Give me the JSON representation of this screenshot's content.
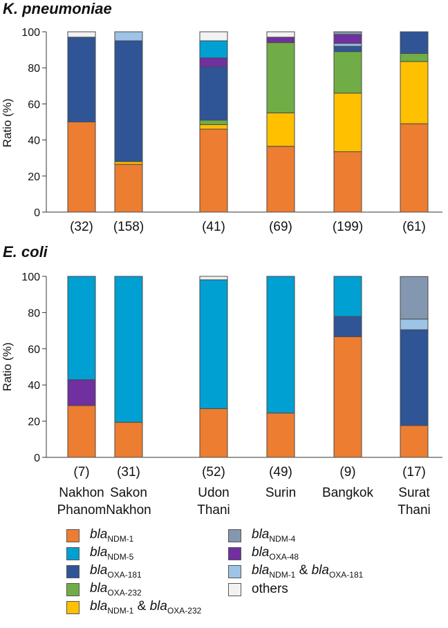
{
  "chart_data": [
    {
      "type": "bar",
      "stacked": true,
      "title": "K. pneumoniae",
      "ylabel": "Ratio (%)",
      "ylim": [
        0,
        100
      ],
      "yticks": [
        0,
        20,
        40,
        60,
        80,
        100
      ],
      "counts": [
        "(32)",
        "(158)",
        "(41)",
        "(69)",
        "(199)",
        "(61)"
      ],
      "series": [
        {
          "name": "NDM-1",
          "values": [
            50,
            26.5,
            46,
            36.5,
            33.5,
            49
          ]
        },
        {
          "name": "NDM-1 & OXA-232",
          "values": [
            0,
            1.5,
            2.5,
            18.5,
            32.5,
            34.5
          ]
        },
        {
          "name": "OXA-232",
          "values": [
            0,
            0,
            2.5,
            39,
            23,
            4.5
          ]
        },
        {
          "name": "OXA-181",
          "values": [
            47,
            67,
            29.5,
            0,
            3,
            12
          ]
        },
        {
          "name": "NDM-1 & OXA-181",
          "values": [
            0,
            5,
            0,
            0,
            1.5,
            0
          ]
        },
        {
          "name": "OXA-48",
          "values": [
            0,
            0,
            5,
            3,
            5,
            0
          ]
        },
        {
          "name": "NDM-5",
          "values": [
            0,
            0,
            9.5,
            0,
            0,
            0
          ]
        },
        {
          "name": "NDM-4",
          "values": [
            0,
            0,
            0,
            0,
            1.5,
            0
          ]
        },
        {
          "name": "others",
          "values": [
            3,
            0,
            5,
            3,
            0,
            0
          ]
        }
      ]
    },
    {
      "type": "bar",
      "stacked": true,
      "title": "E. coli",
      "ylabel": "Ratio (%)",
      "ylim": [
        0,
        100
      ],
      "yticks": [
        0,
        20,
        40,
        60,
        80,
        100
      ],
      "counts": [
        "(7)",
        "(31)",
        "(52)",
        "(49)",
        "(9)",
        "(17)"
      ],
      "categories": [
        [
          "Nakhon",
          "Phanom"
        ],
        [
          "Sakon",
          "Nakhon"
        ],
        [
          "Udon",
          "Thani"
        ],
        [
          "Surin",
          ""
        ],
        [
          "Bangkok",
          ""
        ],
        [
          "Surat",
          "Thani"
        ]
      ],
      "series": [
        {
          "name": "NDM-1",
          "values": [
            28.6,
            19.4,
            26.9,
            24.5,
            66.7,
            17.6
          ]
        },
        {
          "name": "NDM-1 & OXA-232",
          "values": [
            0,
            0,
            0,
            0,
            0,
            0
          ]
        },
        {
          "name": "OXA-232",
          "values": [
            0,
            0,
            0,
            0,
            0,
            0
          ]
        },
        {
          "name": "OXA-181",
          "values": [
            0,
            0,
            0,
            0,
            11.1,
            52.9
          ]
        },
        {
          "name": "NDM-1 & OXA-181",
          "values": [
            0,
            0,
            0,
            0,
            0,
            5.9
          ]
        },
        {
          "name": "OXA-48",
          "values": [
            14.3,
            0,
            0,
            0,
            0,
            0
          ]
        },
        {
          "name": "NDM-5",
          "values": [
            57.1,
            80.6,
            71.2,
            75.5,
            22.2,
            0
          ]
        },
        {
          "name": "NDM-4",
          "values": [
            0,
            0,
            0,
            0,
            0,
            23.5
          ]
        },
        {
          "name": "others",
          "values": [
            0,
            0,
            1.9,
            0,
            0,
            0
          ]
        }
      ]
    }
  ],
  "colors": {
    "NDM-1": "#ed7d31",
    "NDM-5": "#00a0d2",
    "OXA-181": "#2f5597",
    "OXA-232": "#70ad47",
    "NDM-1 & OXA-232": "#ffc000",
    "NDM-4": "#8497b0",
    "OXA-48": "#7030a0",
    "NDM-1 & OXA-181": "#9dc3e6",
    "others": "#f2f2f2"
  },
  "legend": {
    "left": [
      {
        "key": "NDM-1",
        "gene": "bla",
        "sub": "NDM-1"
      },
      {
        "key": "NDM-5",
        "gene": "bla",
        "sub": "NDM-5"
      },
      {
        "key": "OXA-181",
        "gene": "bla",
        "sub": "OXA-181"
      },
      {
        "key": "OXA-232",
        "gene": "bla",
        "sub": "OXA-232"
      },
      {
        "key": "NDM-1 & OXA-232",
        "gene": "bla",
        "sub": "NDM-1",
        "joiner": " & ",
        "gene2": "bla",
        "sub2": "OXA-232"
      }
    ],
    "right": [
      {
        "key": "NDM-4",
        "gene": "bla",
        "sub": "NDM-4"
      },
      {
        "key": "OXA-48",
        "gene": "bla",
        "sub": "OXA-48"
      },
      {
        "key": "NDM-1 & OXA-181",
        "gene": "bla",
        "sub": "NDM-1",
        "joiner": " & ",
        "gene2": "bla",
        "sub2": "OXA-181"
      },
      {
        "key": "others",
        "text": "others"
      }
    ]
  }
}
